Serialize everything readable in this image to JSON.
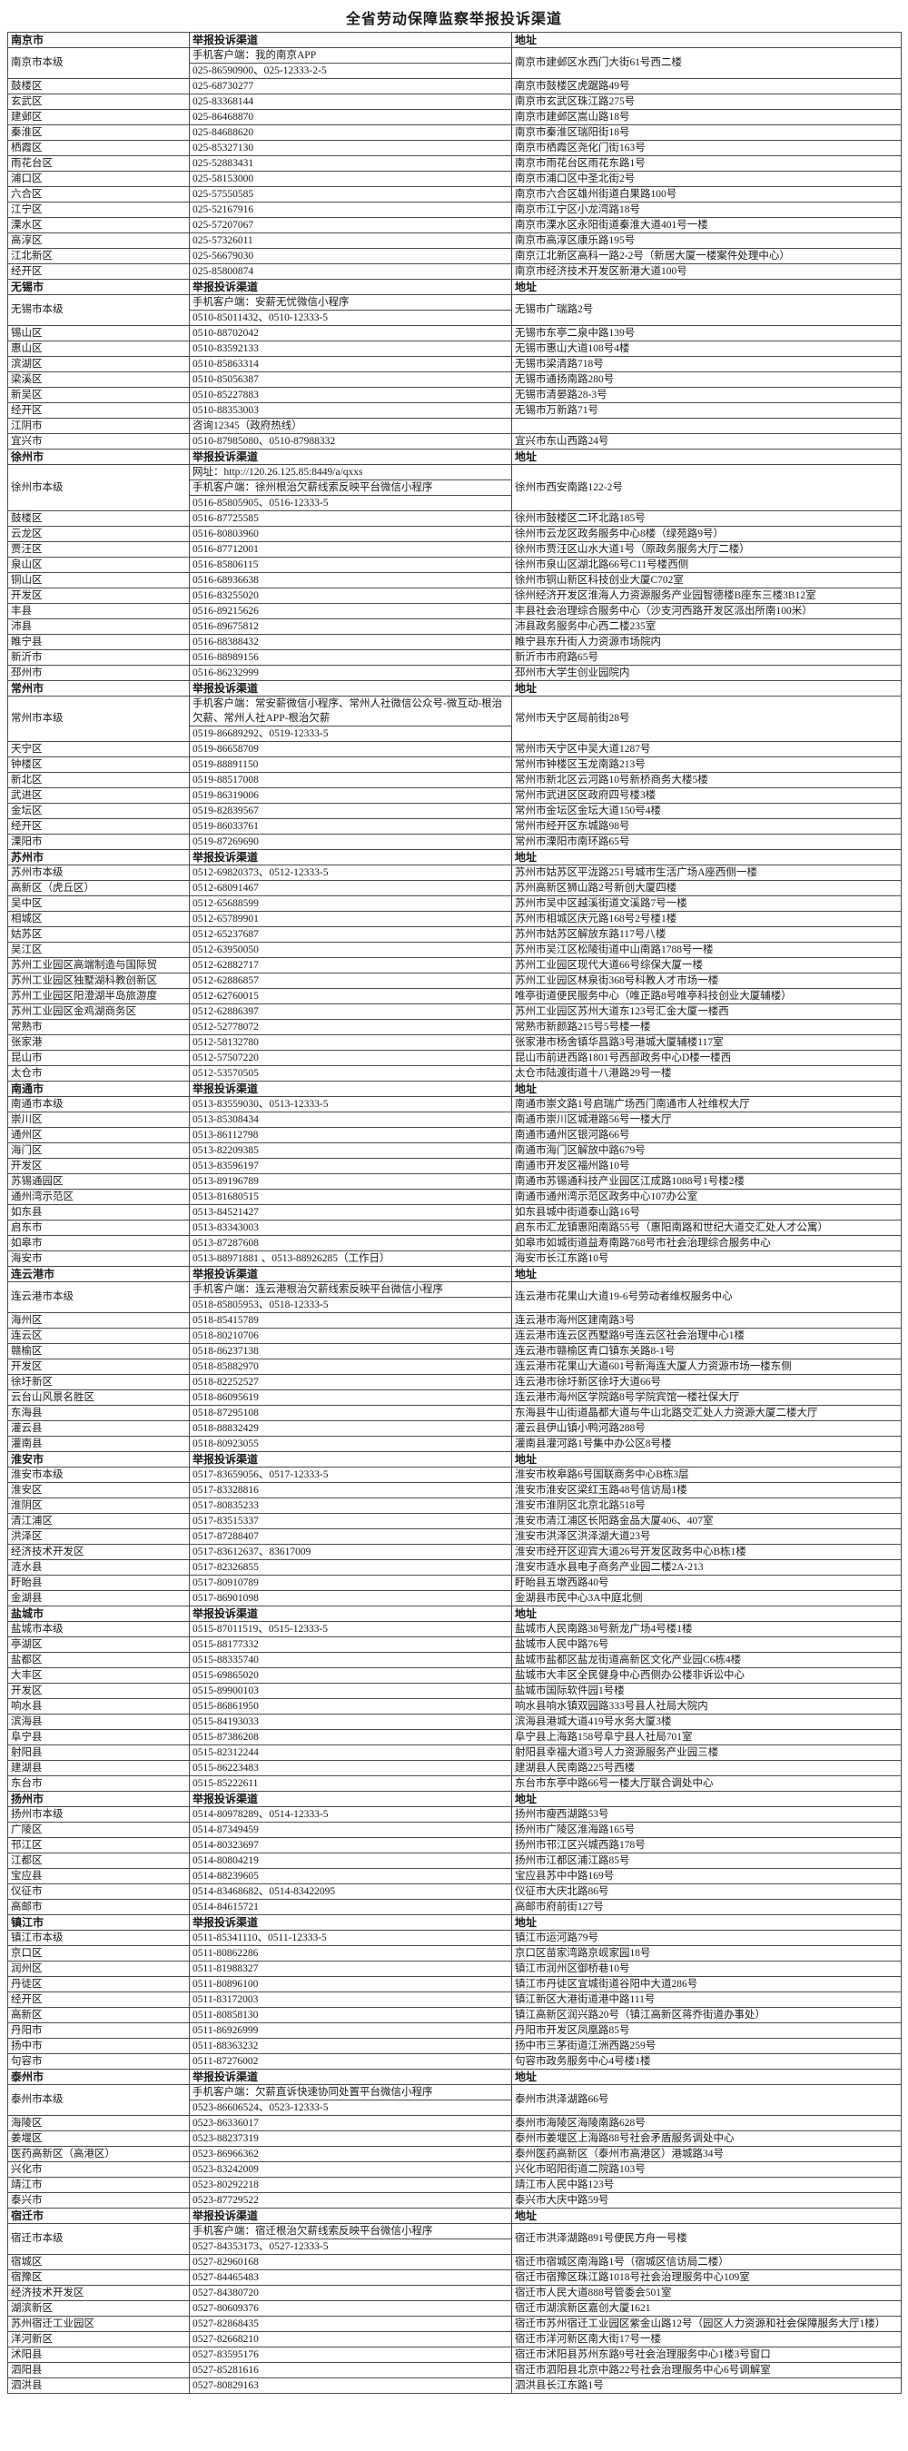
{
  "title": "全省劳动保障监察举报投诉渠道",
  "columns": {
    "channel": "举报投诉渠道",
    "address": "地址"
  },
  "sections": [
    {
      "city": "南京市",
      "rows": [
        {
          "name": "南京市本级",
          "channel": [
            "手机客户端：我的南京APP",
            "025-86590900、025-12333-2-5"
          ],
          "address": "南京市建邺区水西门大街61号西二楼"
        },
        {
          "name": "鼓楼区",
          "channel": "025-68730277",
          "address": "南京市鼓楼区虎踞路49号"
        },
        {
          "name": "玄武区",
          "channel": "025-83368144",
          "address": "南京市玄武区珠江路275号"
        },
        {
          "name": "建邺区",
          "channel": "025-86468870",
          "address": "南京市建邺区嵩山路18号"
        },
        {
          "name": "秦淮区",
          "channel": "025-84688620",
          "address": "南京市秦淮区瑞阳街18号"
        },
        {
          "name": "栖霞区",
          "channel": "025-85327130",
          "address": "南京市栖霞区尧化门街163号"
        },
        {
          "name": "雨花台区",
          "channel": "025-52883431",
          "address": "南京市雨花台区雨花东路1号"
        },
        {
          "name": "浦口区",
          "channel": "025-58153000",
          "address": "南京市浦口区中圣北街2号"
        },
        {
          "name": "六合区",
          "channel": "025-57550585",
          "address": "南京市六合区雄州街道白果路100号"
        },
        {
          "name": "江宁区",
          "channel": "025-52167916",
          "address": "南京市江宁区小龙湾路18号"
        },
        {
          "name": "溧水区",
          "channel": "025-57207067",
          "address": "南京市溧水区永阳街道秦淮大道401号一楼"
        },
        {
          "name": "高淳区",
          "channel": "025-57326011",
          "address": "南京市高淳区康乐路195号"
        },
        {
          "name": "江北新区",
          "channel": "025-56679030",
          "address": "南京江北新区高科一路2-2号（新居大厦一楼案件处理中心）"
        },
        {
          "name": "经开区",
          "channel": "025-85800874",
          "address": "南京市经济技术开发区新港大道100号"
        }
      ]
    },
    {
      "city": "无锡市",
      "rows": [
        {
          "name": "无锡市本级",
          "channel": [
            "手机客户端：安薪无忧微信小程序",
            "0510-85011432、0510-12333-5"
          ],
          "address": "无锡市广瑞路2号"
        },
        {
          "name": "锡山区",
          "channel": "0510-88702042",
          "address": "无锡市东亭二泉中路139号"
        },
        {
          "name": "惠山区",
          "channel": "0510-83592133",
          "address": "无锡市惠山大道108号4楼"
        },
        {
          "name": "滨湖区",
          "channel": "0510-85863314",
          "address": "无锡市梁清路718号"
        },
        {
          "name": "梁溪区",
          "channel": "0510-85056387",
          "address": "无锡市通扬南路280号"
        },
        {
          "name": "新吴区",
          "channel": "0510-85227883",
          "address": "无锡市清晏路28-3号"
        },
        {
          "name": "经开区",
          "channel": "0510-88353003",
          "address": "无锡市万新路71号"
        },
        {
          "name": "江阴市",
          "channel": "咨询12345（政府热线）",
          "address": ""
        },
        {
          "name": "宜兴市",
          "channel": "0510-87985080、0510-87988332",
          "address": "宜兴市东山西路24号"
        }
      ]
    },
    {
      "city": "徐州市",
      "rows": [
        {
          "name": "徐州市本级",
          "channel": [
            "网址：http://120.26.125.85:8449/a/qxxs",
            "手机客户端：徐州根治欠薪线索反映平台微信小程序",
            "0516-85805905、0516-12333-5"
          ],
          "address": "徐州市西安南路122-2号"
        },
        {
          "name": "鼓楼区",
          "channel": "0516-87725585",
          "address": "徐州市鼓楼区二环北路185号"
        },
        {
          "name": "云龙区",
          "channel": "0516-80803960",
          "address": "徐州市云龙区政务服务中心8楼（绿苑路9号）"
        },
        {
          "name": "贾汪区",
          "channel": "0516-87712001",
          "address": "徐州市贾汪区山水大道1号（原政务服务大厅二楼）"
        },
        {
          "name": "泉山区",
          "channel": "0516-85806115",
          "address": "徐州市泉山区湖北路66号C11号楼西侧"
        },
        {
          "name": "铜山区",
          "channel": "0516-68936638",
          "address": "徐州市铜山新区科技创业大厦C702室"
        },
        {
          "name": "开发区",
          "channel": "0516-83255020",
          "address": "徐州经济开发区淮海人力资源服务产业园智德楼B座东三楼3B12室"
        },
        {
          "name": "丰县",
          "channel": "0516-89215626",
          "address": "丰县社会治理综合服务中心（沙支河西路开发区派出所南100米）"
        },
        {
          "name": "沛县",
          "channel": "0516-89675812",
          "address": "沛县政务服务中心西二楼235室"
        },
        {
          "name": "睢宁县",
          "channel": "0516-88388432",
          "address": "睢宁县东升街人力资源市场院内"
        },
        {
          "name": "新沂市",
          "channel": "0516-88989156",
          "address": "新沂市市府路65号"
        },
        {
          "name": "邳州市",
          "channel": "0516-86232999",
          "address": "邳州市大学生创业园院内"
        }
      ]
    },
    {
      "city": "常州市",
      "rows": [
        {
          "name": "常州市本级",
          "channel": [
            "手机客户端：常安薪微信小程序、常州人社微信公众号-微互动-根治欠薪、常州人社APP-根治欠薪",
            "0519-86689292、0519-12333-5"
          ],
          "address": "常州市天宁区局前街28号"
        },
        {
          "name": "天宁区",
          "channel": "0519-86658709",
          "address": "常州市天宁区中吴大道1287号"
        },
        {
          "name": "钟楼区",
          "channel": "0519-88891150",
          "address": "常州市钟楼区玉龙南路213号"
        },
        {
          "name": "新北区",
          "channel": "0519-88517008",
          "address": "常州市新北区云河路10号新桥商务大楼5楼"
        },
        {
          "name": "武进区",
          "channel": "0519-86319006",
          "address": "常州市武进区区政府四号楼3楼"
        },
        {
          "name": "金坛区",
          "channel": "0519-82839567",
          "address": "常州市金坛区金坛大道150号4楼"
        },
        {
          "name": "经开区",
          "channel": "0519-86033761",
          "address": "常州市经开区东城路98号"
        },
        {
          "name": "溧阳市",
          "channel": "0519-87269690",
          "address": "常州市溧阳市南环路65号"
        }
      ]
    },
    {
      "city": "苏州市",
      "rows": [
        {
          "name": "苏州市本级",
          "channel": "0512-69820373、0512-12333-5",
          "address": "苏州市姑苏区平泷路251号城市生活广场A座西侧一楼"
        },
        {
          "name": "高新区（虎丘区）",
          "channel": "0512-68091467",
          "address": "苏州高新区狮山路2号新创大厦四楼"
        },
        {
          "name": "吴中区",
          "channel": "0512-65688599",
          "address": "苏州市吴中区越溪街道文溪路7号一楼"
        },
        {
          "name": "相城区",
          "channel": "0512-65789901",
          "address": "苏州市相城区庆元路168号2号楼1楼"
        },
        {
          "name": "姑苏区",
          "channel": "0512-65237687",
          "address": "苏州市姑苏区解放东路117号八楼"
        },
        {
          "name": "吴江区",
          "channel": "0512-63950050",
          "address": "苏州市吴江区松陵街道中山南路1788号一楼"
        },
        {
          "name": "苏州工业园区高端制造与国际贸",
          "channel": "0512-62882717",
          "address": "苏州工业园区现代大道66号综保大厦一楼"
        },
        {
          "name": "苏州工业园区独墅湖科教创新区",
          "channel": "0512-62886857",
          "address": "苏州工业园区林泉街368号科教人才市场一楼"
        },
        {
          "name": "苏州工业园区阳澄湖半岛旅游度",
          "channel": "0512-62760015",
          "address": "唯亭街道便民服务中心（唯正路8号唯亭科技创业大厦辅楼）"
        },
        {
          "name": "苏州工业园区金鸡湖商务区",
          "channel": "0512-62886397",
          "address": "苏州工业园区苏州大道东123号汇金大厦一楼西"
        },
        {
          "name": "常熟市",
          "channel": "0512-52778072",
          "address": "常熟市新颜路215号5号楼一楼"
        },
        {
          "name": "张家港",
          "channel": "0512-58132780",
          "address": "张家港市杨舍镇华昌路3号港城大厦辅楼117室"
        },
        {
          "name": "昆山市",
          "channel": "0512-57507220",
          "address": "昆山市前进西路1801号西部政务中心D楼一楼西"
        },
        {
          "name": "太仓市",
          "channel": "0512-53570505",
          "address": "太仓市陆渡街道十八港路29号一楼"
        }
      ]
    },
    {
      "city": "南通市",
      "rows": [
        {
          "name": "南通市本级",
          "channel": "0513-83559030、0513-12333-5",
          "address": "南通市崇文路1号启瑞广场西门南通市人社维权大厅"
        },
        {
          "name": "崇川区",
          "channel": "0513-85308434",
          "address": "南通市崇川区城港路56号一楼大厅"
        },
        {
          "name": "通州区",
          "channel": "0513-86112798",
          "address": "南通市通州区银河路66号"
        },
        {
          "name": "海门区",
          "channel": "0513-82209385",
          "address": "南通市海门区解放中路679号"
        },
        {
          "name": "开发区",
          "channel": "0513-83596197",
          "address": "南通市开发区福州路10号"
        },
        {
          "name": "苏锡通园区",
          "channel": "0513-89196789",
          "address": "南通市苏锡通科技产业园区江成路1088号1号楼2楼"
        },
        {
          "name": "通州湾示范区",
          "channel": "0513-81680515",
          "address": "南通市通州湾示范区政务中心107办公室"
        },
        {
          "name": "如东县",
          "channel": "0513-84521427",
          "address": "如东县城中街道泰山路16号"
        },
        {
          "name": "启东市",
          "channel": "0513-83343003",
          "address": "启东市汇龙镇惠阳南路55号（惠阳南路和世纪大道交汇处人才公寓）"
        },
        {
          "name": "如皋市",
          "channel": "0513-87287608",
          "address": "如皋市如城街道益寿南路768号市社会治理综合服务中心"
        },
        {
          "name": "海安市",
          "channel": "0513-88971881 、0513-88926285（工作日）",
          "address": "海安市长江东路10号"
        }
      ]
    },
    {
      "city": "连云港市",
      "rows": [
        {
          "name": "连云港市本级",
          "channel": [
            "手机客户端：连云港根治欠薪线索反映平台微信小程序",
            "0518-85805953、0518-12333-5"
          ],
          "address": "连云港市花果山大道19-6号劳动者维权服务中心"
        },
        {
          "name": "海州区",
          "channel": "0518-85415789",
          "address": "连云港市海州区建南路3号"
        },
        {
          "name": "连云区",
          "channel": "0518-80210706",
          "address": "连云港市连云区西墅路9号连云区社会治理中心1楼"
        },
        {
          "name": "赣榆区",
          "channel": "0518-86237138",
          "address": "连云港市赣榆区青口镇东关路8-1号"
        },
        {
          "name": "开发区",
          "channel": "0518-85882970",
          "address": "连云港市花果山大道601号新海连大厦人力资源市场一楼东侧"
        },
        {
          "name": "徐圩新区",
          "channel": "0518-82252527",
          "address": "连云港市徐圩新区徐圩大道66号"
        },
        {
          "name": "云台山风景名胜区",
          "channel": "0518-86095619",
          "address": "连云港市海州区学院路8号学院宾馆一楼社保大厅"
        },
        {
          "name": "东海县",
          "channel": "0518-87295108",
          "address": "东海县牛山街道晶都大道与牛山北路交汇处人力资源大厦二楼大厅"
        },
        {
          "name": "灌云县",
          "channel": "0518-88832429",
          "address": "灌云县伊山镇小鸭河路288号"
        },
        {
          "name": "灌南县",
          "channel": "0518-80923055",
          "address": "灌南县灌河路1号集中办公区8号楼"
        }
      ]
    },
    {
      "city": "淮安市",
      "rows": [
        {
          "name": "淮安市本级",
          "channel": "0517-83659056、0517-12333-5",
          "address": "淮安市枚皋路6号国联商务中心B栋3层"
        },
        {
          "name": "淮安区",
          "channel": "0517-83328816",
          "address": "淮安市淮安区梁红玉路48号信访局1楼"
        },
        {
          "name": "淮阴区",
          "channel": "0517-80835233",
          "address": "淮安市淮阴区北京北路518号"
        },
        {
          "name": "清江浦区",
          "channel": "0517-83515337",
          "address": "淮安市清江浦区长阳路金品大厦406、407室"
        },
        {
          "name": "洪泽区",
          "channel": "0517-87288407",
          "address": "淮安市洪泽区洪泽湖大道23号"
        },
        {
          "name": "经济技术开发区",
          "channel": "0517-83612637、83617009",
          "address": "淮安市经开区迎宾大道26号开发区政务中心B栋1楼"
        },
        {
          "name": "涟水县",
          "channel": "0517-82326855",
          "address": "淮安市涟水县电子商务产业园二楼2A-213"
        },
        {
          "name": "盱眙县",
          "channel": "0517-80910789",
          "address": "盱眙县五墩西路40号"
        },
        {
          "name": "金湖县",
          "channel": "0517-86901098",
          "address": "金湖县市民中心3A中庭北侧"
        }
      ]
    },
    {
      "city": "盐城市",
      "rows": [
        {
          "name": "盐城市本级",
          "channel": "0515-87011519、0515-12333-5",
          "address": "盐城市人民南路38号新龙广场4号楼1楼"
        },
        {
          "name": "亭湖区",
          "channel": "0515-88177332",
          "address": "盐城市人民中路76号"
        },
        {
          "name": "盐都区",
          "channel": "0515-88335740",
          "address": "盐城市盐都区盐龙街道高新区文化产业园C6栋4楼"
        },
        {
          "name": "大丰区",
          "channel": "0515-69865020",
          "address": "盐城市大丰区全民健身中心西侧办公楼非诉讼中心"
        },
        {
          "name": "开发区",
          "channel": "0515-89900103",
          "address": "盐城市国际软件园1号楼"
        },
        {
          "name": "响水县",
          "channel": "0515-86861950",
          "address": "响水县响水镇双园路333号县人社局大院内"
        },
        {
          "name": "滨海县",
          "channel": "0515-84193033",
          "address": "滨海县港城大道419号水务大厦3楼"
        },
        {
          "name": "阜宁县",
          "channel": "0515-87386208",
          "address": "阜宁县上海路158号阜宁县人社局701室"
        },
        {
          "name": "射阳县",
          "channel": "0515-82312244",
          "address": "射阳县幸福大道3号人力资源服务产业园三楼"
        },
        {
          "name": "建湖县",
          "channel": "0515-86223483",
          "address": "建湖县人民南路225号西楼"
        },
        {
          "name": "东台市",
          "channel": "0515-85222611",
          "address": "东台市东亭中路66号一楼大厅联合调处中心"
        }
      ]
    },
    {
      "city": "扬州市",
      "rows": [
        {
          "name": "扬州市本级",
          "channel": "0514-80978289、0514-12333-5",
          "address": "扬州市瘦西湖路53号"
        },
        {
          "name": "广陵区",
          "channel": "0514-87349459",
          "address": "扬州市广陵区淮海路165号"
        },
        {
          "name": "邗江区",
          "channel": "0514-80323697",
          "address": "扬州市邗江区兴城西路178号"
        },
        {
          "name": "江都区",
          "channel": "0514-80804219",
          "address": "扬州市江都区浦江路85号"
        },
        {
          "name": "宝应县",
          "channel": "0514-88239605",
          "address": "宝应县苏中中路169号"
        },
        {
          "name": "仪征市",
          "channel": "0514-83468682、0514-83422095",
          "address": "仪征市大庆北路86号"
        },
        {
          "name": "高邮市",
          "channel": "0514-84615721",
          "address": "高邮市府前街127号"
        }
      ]
    },
    {
      "city": "镇江市",
      "rows": [
        {
          "name": "镇江市本级",
          "channel": "0511-85341110、0511-12333-5",
          "address": "镇江市运河路79号"
        },
        {
          "name": "京口区",
          "channel": "0511-80862286",
          "address": "京口区苗家湾路京岘家园18号"
        },
        {
          "name": "润州区",
          "channel": "0511-81988327",
          "address": "镇江市润州区御桥巷10号"
        },
        {
          "name": "丹徒区",
          "channel": "0511-80896100",
          "address": "镇江市丹徒区宜城街道谷阳中大道286号"
        },
        {
          "name": "经开区",
          "channel": "0511-83172003",
          "address": "镇江新区大港街道港中路111号"
        },
        {
          "name": "高新区",
          "channel": "0511-80858130",
          "address": "镇江高新区润兴路20号（镇江高新区蒋乔街道办事处）"
        },
        {
          "name": "丹阳市",
          "channel": "0511-86926999",
          "address": "丹阳市开发区凤凰路85号"
        },
        {
          "name": "扬中市",
          "channel": "0511-88363232",
          "address": "扬中市三茅街道江洲西路259号"
        },
        {
          "name": "句容市",
          "channel": "0511-87276002",
          "address": "句容市政务服务中心4号楼1楼"
        }
      ]
    },
    {
      "city": "泰州市",
      "rows": [
        {
          "name": "泰州市本级",
          "channel": [
            "手机客户端：欠薪直诉快速协同处置平台微信小程序",
            "0523-86606524、0523-12333-5"
          ],
          "address": "泰州市洪泽湖路66号"
        },
        {
          "name": "海陵区",
          "channel": "0523-86336017",
          "address": "泰州市海陵区海陵南路628号"
        },
        {
          "name": "姜堰区",
          "channel": "0523-88237319",
          "address": "泰州市姜堰区上海路88号社会矛盾服务调处中心"
        },
        {
          "name": "医药高新区（高港区）",
          "channel": "0523-86966362",
          "address": "泰州医药高新区（泰州市高港区）港城路34号"
        },
        {
          "name": "兴化市",
          "channel": "0523-83242009",
          "address": "兴化市昭阳街道二院路103号"
        },
        {
          "name": "靖江市",
          "channel": "0523-80292218",
          "address": "靖江市人民中路123号"
        },
        {
          "name": "泰兴市",
          "channel": "0523-87729522",
          "address": "泰兴市大庆中路59号"
        }
      ]
    },
    {
      "city": "宿迁市",
      "rows": [
        {
          "name": "宿迁市本级",
          "channel": [
            "手机客户端：宿迁根治欠薪线索反映平台微信小程序",
            "0527-84353173、0527-12333-5"
          ],
          "address": "宿迁市洪泽湖路891号便民方舟一号楼"
        },
        {
          "name": "宿城区",
          "channel": "0527-82960168",
          "address": "宿迁市宿城区南海路1号（宿城区信访局二楼）"
        },
        {
          "name": "宿豫区",
          "channel": "0527-84465483",
          "address": "宿迁市宿豫区珠江路1018号社会治理服务中心109室"
        },
        {
          "name": "经济技术开发区",
          "channel": "0527-84380720",
          "address": "宿迁市人民大道888号管委会501室"
        },
        {
          "name": "湖滨新区",
          "channel": "0527-80609376",
          "address": "宿迁市湖滨新区嘉创大厦1621"
        },
        {
          "name": "苏州宿迁工业园区",
          "channel": "0527-82868435",
          "address": "宿迁市苏州宿迁工业园区紫金山路12号（园区人力资源和社会保障服务大厅1楼）"
        },
        {
          "name": "洋河新区",
          "channel": "0527-82668210",
          "address": "宿迁市洋河新区南大街17号一楼"
        },
        {
          "name": "沭阳县",
          "channel": "0527-83595176",
          "address": "宿迁市沭阳县苏州东路9号社会治理服务中心1楼3号窗口"
        },
        {
          "name": "泗阳县",
          "channel": "0527-85281616",
          "address": "宿迁市泗阳县北京中路22号社会治理服务中心6号调解室"
        },
        {
          "name": "泗洪县",
          "channel": "0527-80829163",
          "address": "泗洪县长江东路1号"
        }
      ]
    }
  ]
}
